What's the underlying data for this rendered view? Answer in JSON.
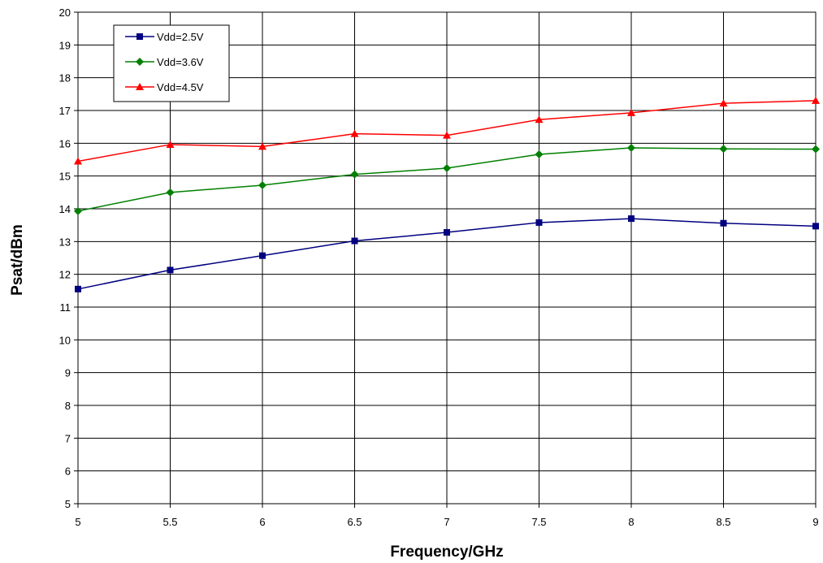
{
  "chart_data": {
    "type": "line",
    "title": "",
    "xlabel": "Frequency/GHz",
    "ylabel": "Psat/dBm",
    "xlim": [
      5,
      9
    ],
    "ylim": [
      5,
      20
    ],
    "x": [
      5,
      5.5,
      6,
      6.5,
      7,
      7.5,
      8,
      8.5,
      9
    ],
    "x_tick_labels": [
      "5",
      "5.5",
      "6",
      "6.5",
      "7",
      "7.5",
      "8",
      "8.5",
      "9"
    ],
    "y_tick_labels": [
      "5",
      "6",
      "7",
      "8",
      "9",
      "10",
      "11",
      "12",
      "13",
      "14",
      "15",
      "16",
      "17",
      "18",
      "19",
      "20"
    ],
    "grid": true,
    "legend_position": "top-left",
    "series": [
      {
        "name": "Vdd=2.5V",
        "color": "#000080",
        "marker": "square",
        "values": [
          11.55,
          12.13,
          12.57,
          13.02,
          13.28,
          13.58,
          13.7,
          13.56,
          13.47
        ]
      },
      {
        "name": "Vdd=3.6V",
        "color": "#008000",
        "marker": "diamond",
        "values": [
          13.93,
          14.5,
          14.72,
          15.05,
          15.24,
          15.66,
          15.86,
          15.83,
          15.82
        ]
      },
      {
        "name": "Vdd=4.5V",
        "color": "#FF0000",
        "marker": "triangle",
        "values": [
          15.45,
          15.96,
          15.9,
          16.29,
          16.24,
          16.72,
          16.93,
          17.22,
          17.3
        ]
      }
    ]
  }
}
